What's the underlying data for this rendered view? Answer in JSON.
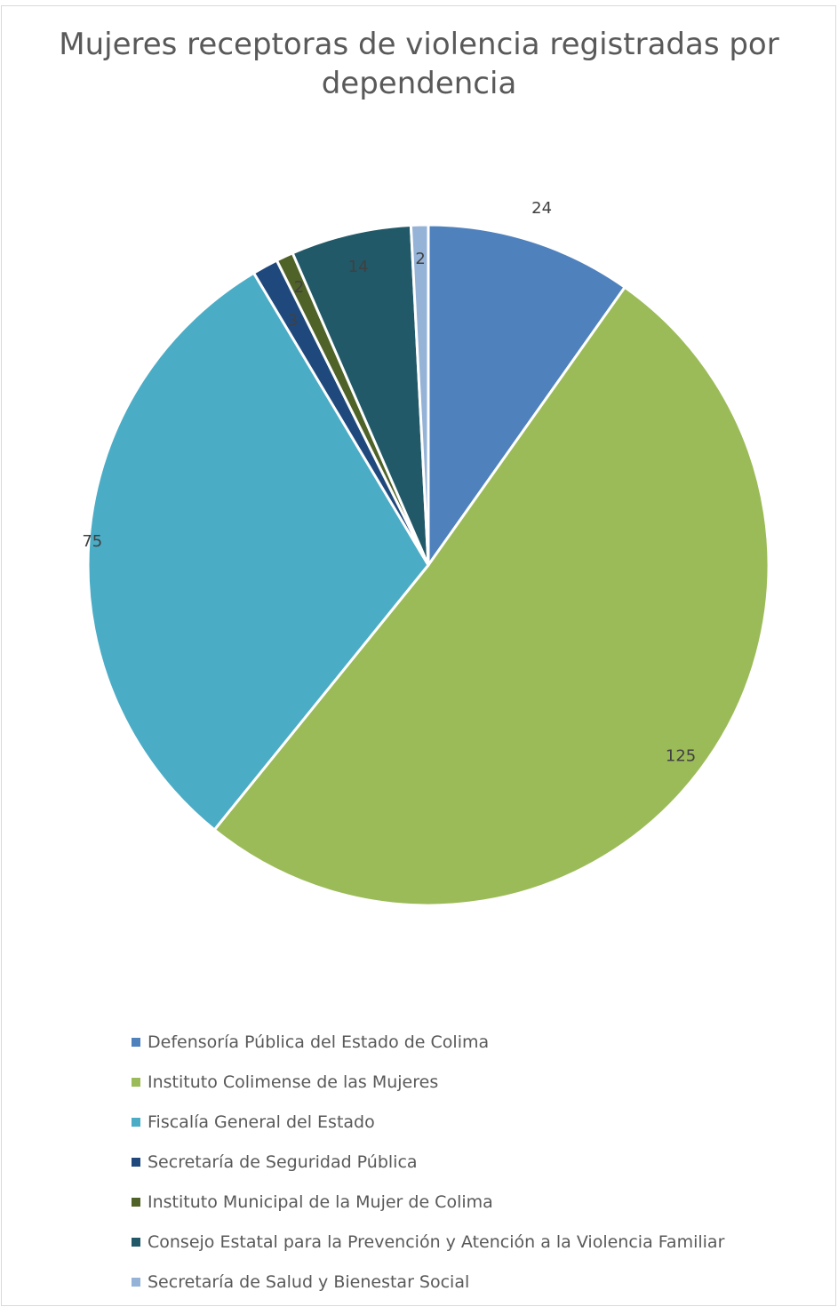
{
  "chart_data": {
    "type": "pie",
    "title": "Mujeres receptoras de violencia registradas por dependencia",
    "categories": [
      "Defensoría Pública del Estado de Colima",
      "Instituto Colimense de las Mujeres",
      "Fiscalía General del Estado",
      "Secretaría de Seguridad Pública",
      "Instituto Municipal de la Mujer de Colima",
      "Consejo Estatal para la Prevención y Atención a la Violencia Familiar",
      "Secretaría de Salud y Bienestar Social"
    ],
    "values": [
      24,
      125,
      75,
      3,
      2,
      14,
      2
    ],
    "data_labels": [
      "24",
      "125",
      "75",
      "3",
      "2",
      "14",
      "2"
    ],
    "colors": [
      "#4f81bd",
      "#9bbb59",
      "#4bacc6",
      "#1f497d",
      "#4f6228",
      "#215968",
      "#95b3d7"
    ],
    "legend_position": "bottom",
    "start_angle": "12 o'clock, clockwise"
  }
}
